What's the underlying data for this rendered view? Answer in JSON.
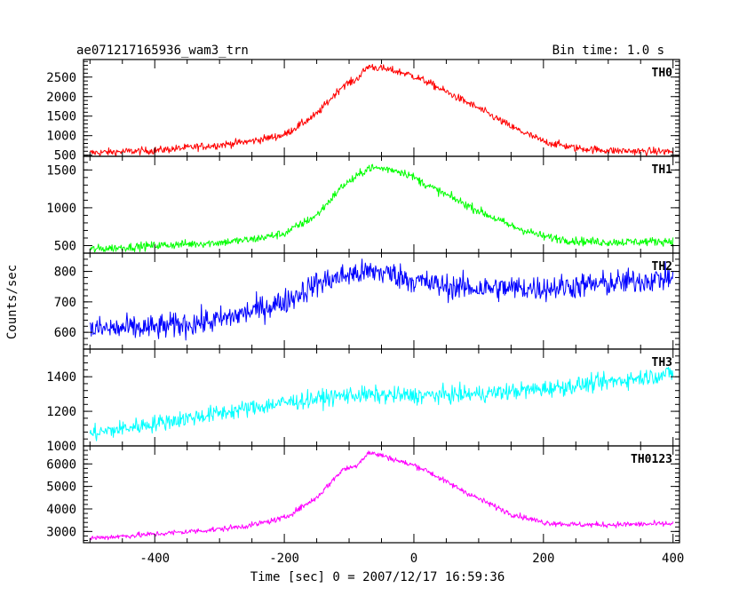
{
  "header": {
    "title": "ae071217165936_wam3_trn",
    "bin_time": "Bin time: 1.0 s"
  },
  "chart_data": {
    "type": "line",
    "title": "ae071217165936_wam3_trn",
    "xlabel": "Time [sec] 0 = 2007/12/17 16:59:36",
    "ylabel": "Counts/sec",
    "xlim": [
      -510,
      410
    ],
    "x_ticks": [
      -400,
      -200,
      0,
      200,
      400
    ],
    "panels": [
      {
        "name": "TH0",
        "color": "#ff0000",
        "ylim": [
          470,
          2950
        ],
        "y_ticks": [
          500,
          1000,
          1500,
          2000,
          2500
        ],
        "noise": 70,
        "x": [
          -500,
          -400,
          -300,
          -250,
          -200,
          -150,
          -110,
          -90,
          -70,
          -50,
          -30,
          -10,
          0,
          20,
          50,
          100,
          150,
          200,
          250,
          300,
          350,
          400
        ],
        "y": [
          560,
          620,
          760,
          860,
          1020,
          1550,
          2280,
          2420,
          2780,
          2720,
          2660,
          2580,
          2520,
          2380,
          2120,
          1700,
          1230,
          850,
          680,
          620,
          600,
          590
        ]
      },
      {
        "name": "TH1",
        "color": "#00ff00",
        "ylim": [
          400,
          1680
        ],
        "y_ticks": [
          500,
          1000,
          1500
        ],
        "noise": 40,
        "x": [
          -500,
          -400,
          -300,
          -250,
          -200,
          -150,
          -110,
          -90,
          -70,
          -50,
          -30,
          -10,
          0,
          20,
          50,
          100,
          150,
          200,
          250,
          300,
          350,
          400
        ],
        "y": [
          450,
          500,
          540,
          580,
          660,
          900,
          1290,
          1400,
          1530,
          1520,
          1500,
          1450,
          1400,
          1300,
          1170,
          960,
          760,
          620,
          560,
          545,
          550,
          560
        ]
      },
      {
        "name": "TH2",
        "color": "#0000ff",
        "ylim": [
          545,
          860
        ],
        "y_ticks": [
          600,
          700,
          800
        ],
        "noise": 30,
        "x": [
          -500,
          -400,
          -300,
          -200,
          -150,
          -100,
          -60,
          -30,
          0,
          50,
          100,
          150,
          200,
          300,
          400
        ],
        "y": [
          610,
          615,
          640,
          700,
          760,
          790,
          800,
          790,
          770,
          750,
          745,
          745,
          745,
          760,
          780
        ]
      },
      {
        "name": "TH3",
        "color": "#00ffff",
        "ylim": [
          1000,
          1560
        ],
        "y_ticks": [
          1000,
          1200,
          1400
        ],
        "noise": 35,
        "x": [
          -500,
          -400,
          -300,
          -200,
          -100,
          0,
          100,
          200,
          300,
          400
        ],
        "y": [
          1070,
          1130,
          1190,
          1250,
          1295,
          1290,
          1300,
          1330,
          1370,
          1420
        ]
      },
      {
        "name": "TH0123",
        "color": "#ff00ff",
        "ylim": [
          2500,
          6800
        ],
        "y_ticks": [
          3000,
          4000,
          5000,
          6000
        ],
        "noise": 90,
        "x": [
          -500,
          -400,
          -300,
          -250,
          -200,
          -150,
          -110,
          -90,
          -70,
          -50,
          -30,
          -10,
          0,
          20,
          50,
          100,
          150,
          200,
          250,
          300,
          350,
          400
        ],
        "y": [
          2700,
          2880,
          3100,
          3280,
          3600,
          4500,
          5750,
          5900,
          6500,
          6380,
          6200,
          6000,
          5950,
          5700,
          5200,
          4450,
          3780,
          3400,
          3300,
          3300,
          3320,
          3340
        ]
      }
    ]
  }
}
